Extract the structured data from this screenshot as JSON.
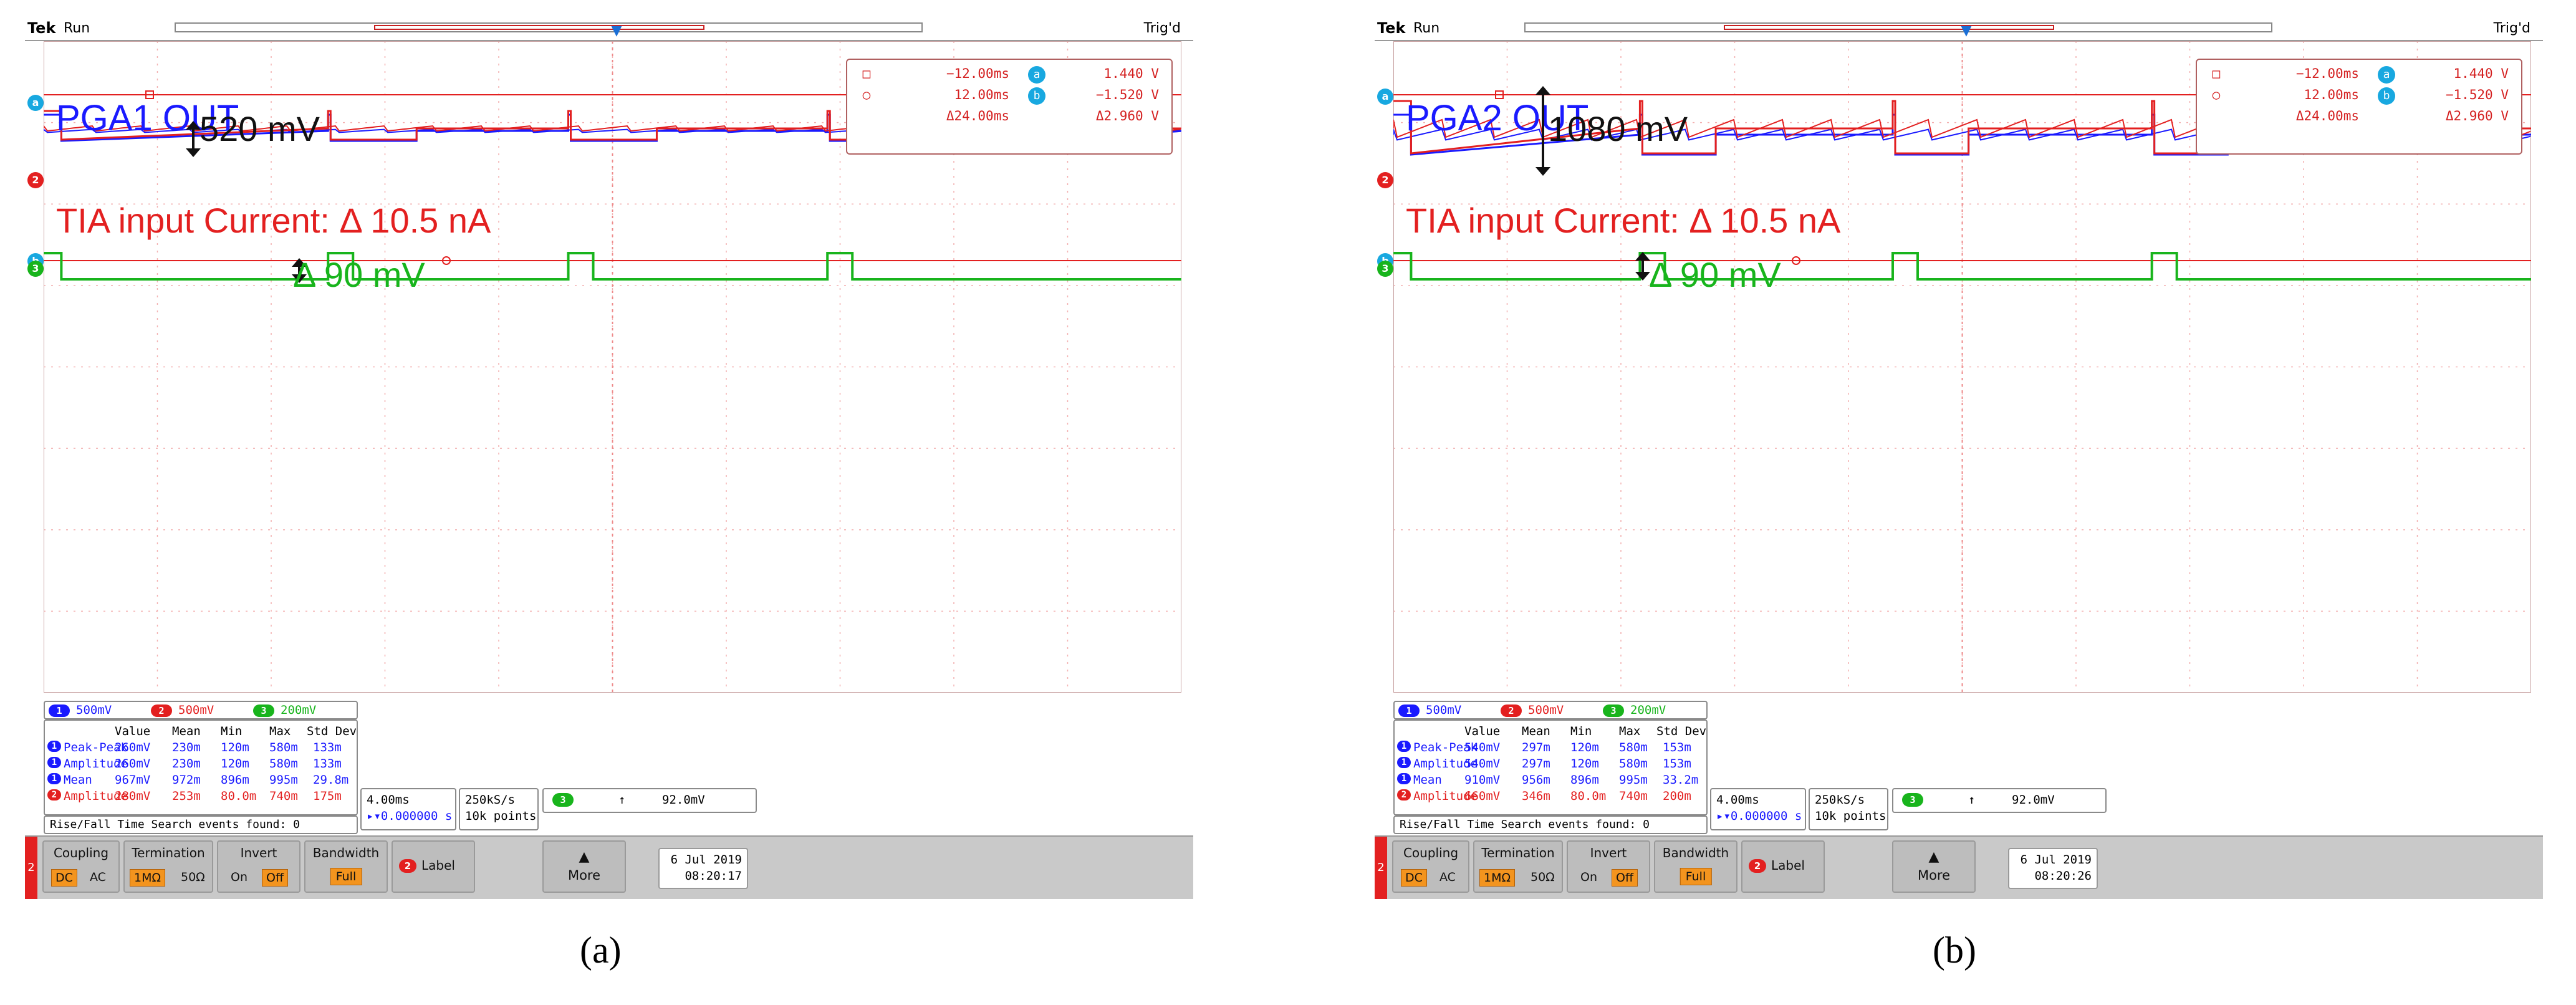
{
  "panels": [
    {
      "id": "a",
      "caption": "(a)",
      "topbar": {
        "brand": "Tek",
        "state": "Run",
        "trigger_status": "Trig'd"
      },
      "title": "PGA1 OUT",
      "cursor_readout": {
        "row1": {
          "time": "−12.00ms",
          "channel": "a",
          "voltage": "1.440 V"
        },
        "row2": {
          "time": "12.00ms",
          "channel": "b",
          "voltage": "−1.520 V"
        },
        "row3": {
          "time": "Δ24.00ms",
          "voltage": "Δ2.960 V"
        }
      },
      "annotation_pga": "520 mV",
      "annotation_tia": "TIA  input Current:  Δ 10.5 nA",
      "annotation_ch3": "Δ 90 mV",
      "channel_markers": {
        "cursor_a": "a",
        "ch2": "2",
        "cursor_b": "b",
        "ch3": "3"
      },
      "scales": {
        "ch1": "500mV",
        "ch2": "500mV",
        "ch3": "200mV",
        "ch1_badge": "1",
        "ch2_badge": "2",
        "ch3_badge": "3"
      },
      "measurements": {
        "headers": [
          "Value",
          "Mean",
          "Min",
          "Max",
          "Std Dev"
        ],
        "rows": [
          {
            "ch": "1",
            "name": "Peak-Peak",
            "cells": [
              "260mV",
              "230m",
              "120m",
              "580m",
              "133m"
            ]
          },
          {
            "ch": "1",
            "name": "Amplitude",
            "cells": [
              "260mV",
              "230m",
              "120m",
              "580m",
              "133m"
            ]
          },
          {
            "ch": "1",
            "name": "Mean",
            "cells": [
              "967mV",
              "972m",
              "896m",
              "995m",
              "29.8m"
            ]
          },
          {
            "ch": "2",
            "name": "Amplitude",
            "cells": [
              "280mV",
              "253m",
              "80.0m",
              "740m",
              "175m"
            ]
          }
        ]
      },
      "search_text": "Rise/Fall Time Search events found: 0",
      "horizontal": {
        "scale": "4.00ms",
        "position": "▸▾0.000000 s"
      },
      "acquisition": {
        "rate": "250kS/s",
        "points": "10k points"
      },
      "trigger": {
        "badge": "3",
        "slope": "↑",
        "level": "92.0mV"
      },
      "menu": {
        "channel": "2",
        "coupling": {
          "label": "Coupling",
          "opt1": "DC",
          "opt2": "AC"
        },
        "termination": {
          "label": "Termination",
          "opt1": "1MΩ",
          "opt2": "50Ω"
        },
        "invert": {
          "label": "Invert",
          "opt1": "On",
          "opt2": "Off"
        },
        "bandwidth": {
          "label": "Bandwidth",
          "value": "Full"
        },
        "label_button": {
          "badge": "2",
          "text": "Label"
        },
        "more": {
          "arrow": "▲",
          "text": "More"
        }
      },
      "date": "6 Jul  2019",
      "time": "08:20:17",
      "colors": {
        "ch1": "#1a1aff",
        "ch2": "#e32020",
        "ch3": "#18b41c",
        "cursor": "#18a8e0",
        "select": "#f3941e"
      }
    },
    {
      "id": "b",
      "caption": "(b)",
      "topbar": {
        "brand": "Tek",
        "state": "Run",
        "trigger_status": "Trig'd"
      },
      "title": "PGA2 OUT",
      "cursor_readout": {
        "row1": {
          "time": "−12.00ms",
          "channel": "a",
          "voltage": "1.440 V"
        },
        "row2": {
          "time": "12.00ms",
          "channel": "b",
          "voltage": "−1.520 V"
        },
        "row3": {
          "time": "Δ24.00ms",
          "voltage": "Δ2.960 V"
        }
      },
      "annotation_pga": "1080 mV",
      "annotation_tia": "TIA  input Current:  Δ 10.5 nA",
      "annotation_ch3": "Δ 90 mV",
      "channel_markers": {
        "cursor_a": "a",
        "ch2": "2",
        "cursor_b": "b",
        "ch3": "3"
      },
      "scales": {
        "ch1": "500mV",
        "ch2": "500mV",
        "ch3": "200mV",
        "ch1_badge": "1",
        "ch2_badge": "2",
        "ch3_badge": "3"
      },
      "measurements": {
        "headers": [
          "Value",
          "Mean",
          "Min",
          "Max",
          "Std Dev"
        ],
        "rows": [
          {
            "ch": "1",
            "name": "Peak-Peak",
            "cells": [
              "540mV",
              "297m",
              "120m",
              "580m",
              "153m"
            ]
          },
          {
            "ch": "1",
            "name": "Amplitude",
            "cells": [
              "540mV",
              "297m",
              "120m",
              "580m",
              "153m"
            ]
          },
          {
            "ch": "1",
            "name": "Mean",
            "cells": [
              "910mV",
              "956m",
              "896m",
              "995m",
              "33.2m"
            ]
          },
          {
            "ch": "2",
            "name": "Amplitude",
            "cells": [
              "660mV",
              "346m",
              "80.0m",
              "740m",
              "200m"
            ]
          }
        ]
      },
      "search_text": "Rise/Fall Time Search events found: 0",
      "horizontal": {
        "scale": "4.00ms",
        "position": "▸▾0.000000 s"
      },
      "acquisition": {
        "rate": "250kS/s",
        "points": "10k points"
      },
      "trigger": {
        "badge": "3",
        "slope": "↑",
        "level": "92.0mV"
      },
      "menu": {
        "channel": "2",
        "coupling": {
          "label": "Coupling",
          "opt1": "DC",
          "opt2": "AC"
        },
        "termination": {
          "label": "Termination",
          "opt1": "1MΩ",
          "opt2": "50Ω"
        },
        "invert": {
          "label": "Invert",
          "opt1": "On",
          "opt2": "Off"
        },
        "bandwidth": {
          "label": "Bandwidth",
          "value": "Full"
        },
        "label_button": {
          "badge": "2",
          "text": "Label"
        },
        "more": {
          "arrow": "▲",
          "text": "More"
        }
      },
      "date": "6 Jul  2019",
      "time": "08:20:26",
      "colors": {
        "ch1": "#1a1aff",
        "ch2": "#e32020",
        "ch3": "#18b41c",
        "cursor": "#18a8e0",
        "select": "#f3941e"
      }
    }
  ]
}
